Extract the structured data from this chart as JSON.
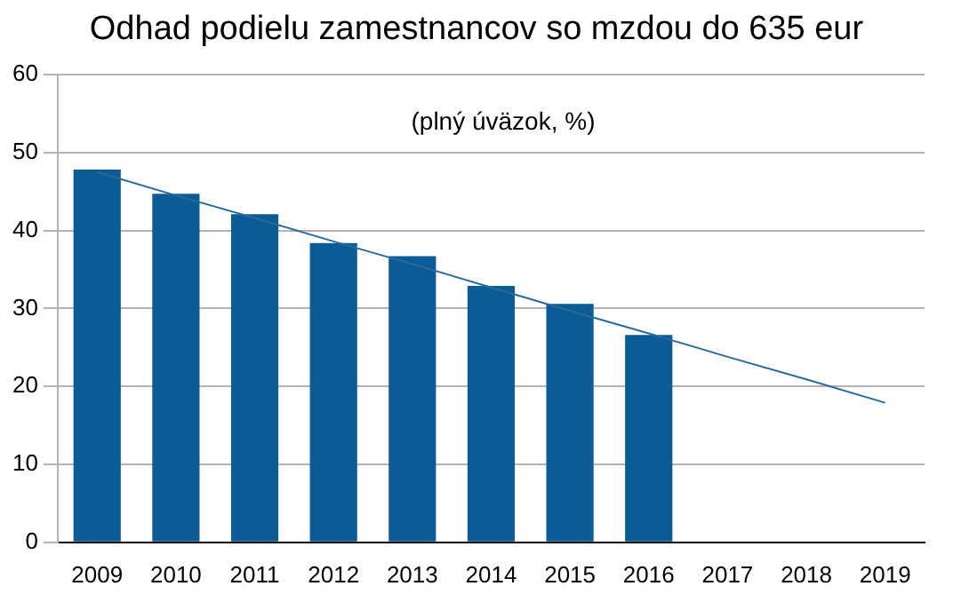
{
  "chart_data": {
    "type": "bar",
    "title": "Odhad podielu zamestnancov so mzdou do 635 eur",
    "subtitle": "(plný úväzok, %)",
    "categories": [
      "2009",
      "2010",
      "2011",
      "2012",
      "2013",
      "2014",
      "2015",
      "2016",
      "2017",
      "2018",
      "2019"
    ],
    "series": [
      {
        "color": "#0b5b96",
        "values": [
          47.8,
          44.7,
          42.1,
          38.4,
          36.7,
          32.9,
          30.6,
          26.6,
          null,
          null,
          null
        ]
      },
      {
        "type": "line",
        "color": "#2a6a9a",
        "values": [
          47.5,
          44.5,
          41.6,
          38.6,
          35.7,
          32.7,
          29.7,
          26.8,
          23.8,
          20.9,
          17.9
        ]
      }
    ],
    "ylim": [
      0,
      60
    ],
    "yticks": [
      0,
      10,
      20,
      30,
      40,
      50,
      60
    ],
    "grid": "y",
    "legend": false,
    "marker": "none"
  }
}
